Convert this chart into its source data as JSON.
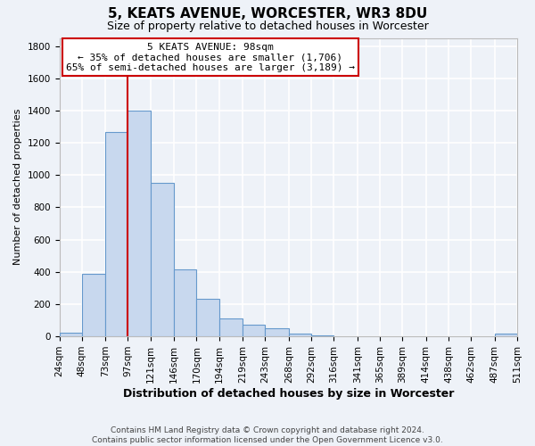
{
  "title": "5, KEATS AVENUE, WORCESTER, WR3 8DU",
  "subtitle": "Size of property relative to detached houses in Worcester",
  "xlabel": "Distribution of detached houses by size in Worcester",
  "ylabel": "Number of detached properties",
  "bar_edges": [
    24,
    48,
    73,
    97,
    121,
    146,
    170,
    194,
    219,
    243,
    268,
    292,
    316,
    341,
    365,
    389,
    414,
    438,
    462,
    487,
    511
  ],
  "bar_heights": [
    25,
    385,
    1265,
    1400,
    950,
    415,
    235,
    110,
    70,
    50,
    15,
    5,
    0,
    0,
    0,
    0,
    0,
    0,
    0,
    15
  ],
  "bar_color": "#c8d8ee",
  "bar_edge_color": "#6699cc",
  "property_line_x": 97,
  "property_line_color": "#cc0000",
  "annotation_title": "5 KEATS AVENUE: 98sqm",
  "annotation_line1": "← 35% of detached houses are smaller (1,706)",
  "annotation_line2": "65% of semi-detached houses are larger (3,189) →",
  "annotation_box_color": "#ffffff",
  "annotation_box_edge": "#cc0000",
  "ylim": [
    0,
    1850
  ],
  "yticks": [
    0,
    200,
    400,
    600,
    800,
    1000,
    1200,
    1400,
    1600,
    1800
  ],
  "footer_line1": "Contains HM Land Registry data © Crown copyright and database right 2024.",
  "footer_line2": "Contains public sector information licensed under the Open Government Licence v3.0.",
  "bg_color": "#eef2f8",
  "grid_color": "#ffffff",
  "title_fontsize": 11,
  "subtitle_fontsize": 9,
  "ylabel_fontsize": 8,
  "xlabel_fontsize": 9,
  "tick_fontsize": 7.5,
  "footer_fontsize": 6.5,
  "annot_fontsize": 8
}
